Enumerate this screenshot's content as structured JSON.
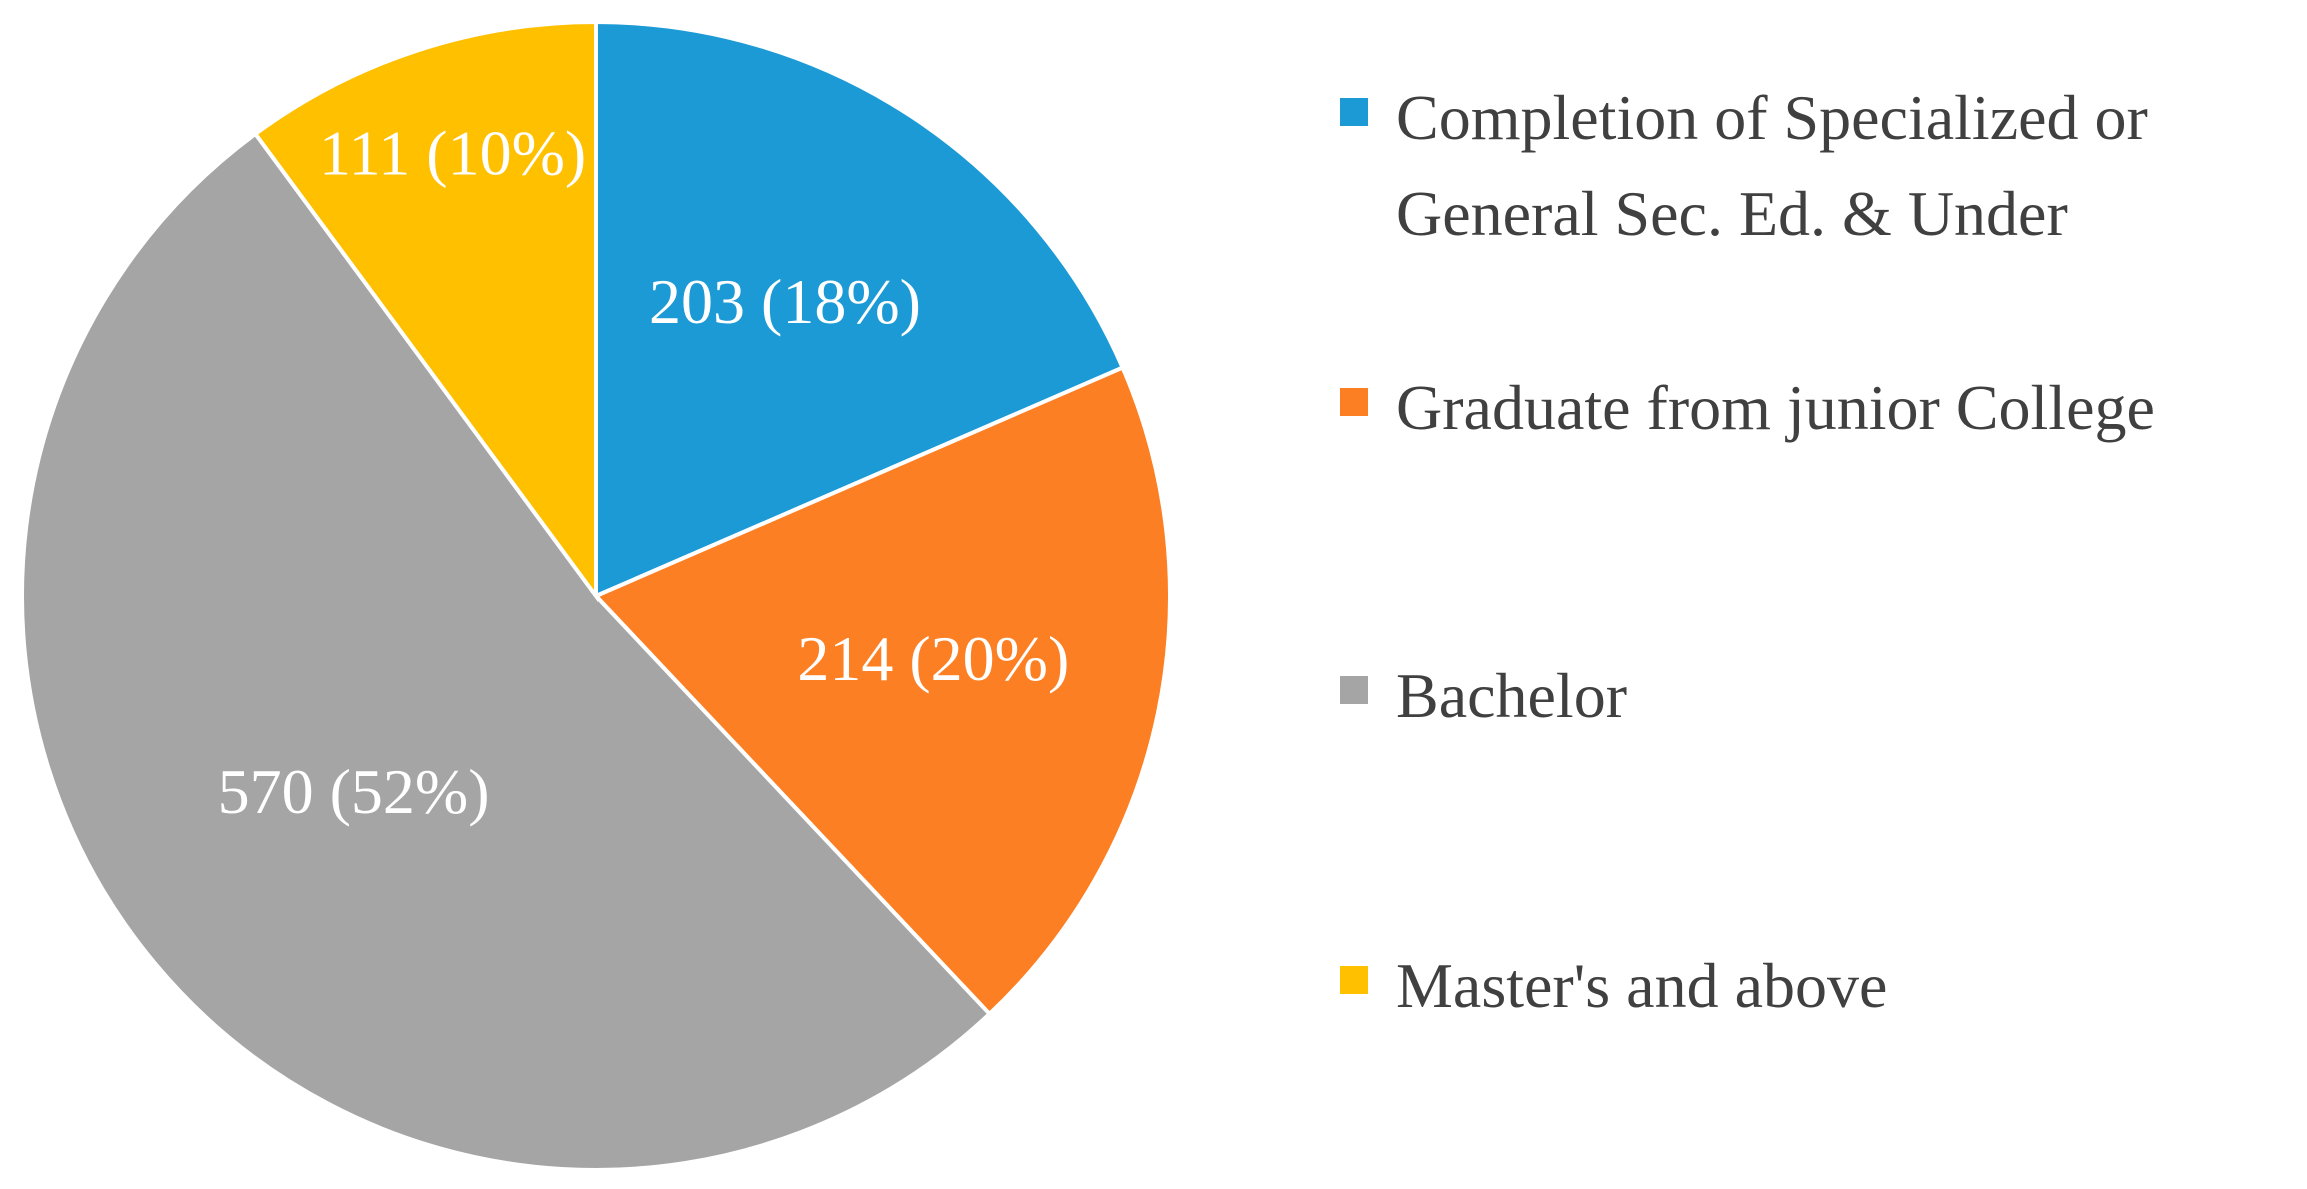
{
  "chart_data": {
    "type": "pie",
    "categories": [
      "Completion of Specialized or General Sec. Ed. & Under",
      "Graduate from junior College",
      "Bachelor",
      "Master's and above"
    ],
    "values": [
      203,
      214,
      570,
      111
    ],
    "value_labels": [
      "203 (18%)",
      "214 (20%)",
      "570 (52%)",
      "111 (10%)"
    ],
    "colors": [
      "#1b9ad6",
      "#fd7f23",
      "#a5a5a5",
      "#ffc000"
    ],
    "legend": "right"
  }
}
